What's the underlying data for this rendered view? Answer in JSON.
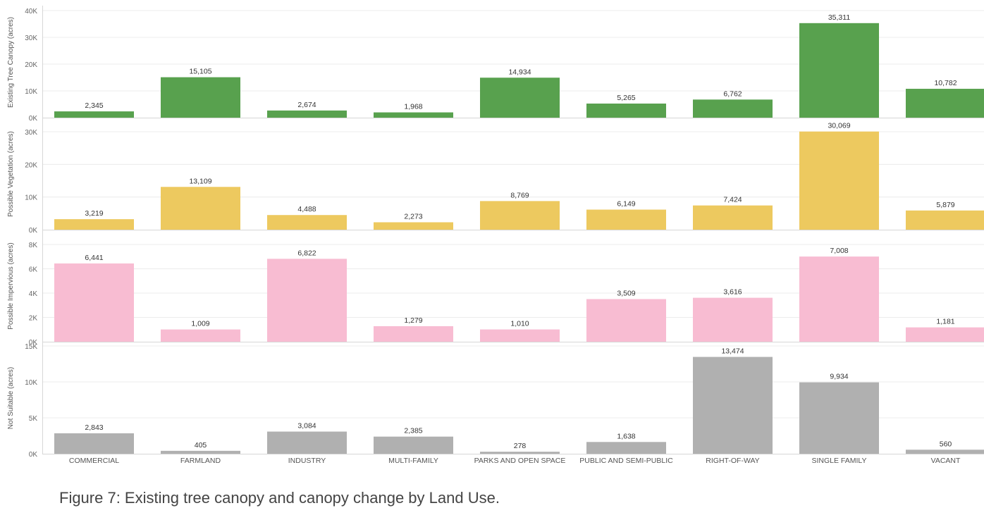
{
  "caption": "Figure 7: Existing tree canopy and canopy change by Land Use.",
  "chart_data": {
    "type": "bar",
    "categories": [
      "COMMERCIAL",
      "FARMLAND",
      "INDUSTRY",
      "MULTI-FAMILY",
      "PARKS AND OPEN SPACE",
      "PUBLIC AND SEMI-PUBLIC",
      "RIGHT-OF-WAY",
      "SINGLE FAMILY",
      "VACANT"
    ],
    "panels": [
      {
        "ylabel": "Existing Tree Canopy (acres)",
        "color": "#58a14e",
        "ylim": [
          0,
          40000
        ],
        "ticks": [
          0,
          10000,
          20000,
          30000,
          40000
        ],
        "tick_labels": [
          "0K",
          "10K",
          "20K",
          "30K",
          "40K"
        ],
        "values": [
          2345,
          15105,
          2674,
          1968,
          14934,
          5265,
          6762,
          35311,
          10782
        ],
        "value_labels": [
          "2,345",
          "15,105",
          "2,674",
          "1,968",
          "14,934",
          "5,265",
          "6,762",
          "35,311",
          "10,782"
        ]
      },
      {
        "ylabel": "Possible Vegetation (acres)",
        "color": "#edc95f",
        "ylim": [
          0,
          30000
        ],
        "ticks": [
          0,
          10000,
          20000,
          30000
        ],
        "tick_labels": [
          "0K",
          "10K",
          "20K",
          "30K"
        ],
        "values": [
          3219,
          13109,
          4488,
          2273,
          8769,
          6149,
          7424,
          30069,
          5879
        ],
        "value_labels": [
          "3,219",
          "13,109",
          "4,488",
          "2,273",
          "8,769",
          "6,149",
          "7,424",
          "30,069",
          "5,879"
        ]
      },
      {
        "ylabel": "Possible Impervious (acres)",
        "color": "#f8bcd2",
        "ylim": [
          0,
          8000
        ],
        "ticks": [
          0,
          2000,
          4000,
          6000,
          8000
        ],
        "tick_labels": [
          "0K",
          "2K",
          "4K",
          "6K",
          "8K"
        ],
        "values": [
          6441,
          1009,
          6822,
          1279,
          1010,
          3509,
          3616,
          7008,
          1181
        ],
        "value_labels": [
          "6,441",
          "1,009",
          "6,822",
          "1,279",
          "1,010",
          "3,509",
          "3,616",
          "7,008",
          "1,181"
        ]
      },
      {
        "ylabel": "Not Suitable (acres)",
        "color": "#b0b0b0",
        "ylim": [
          0,
          15000
        ],
        "ticks": [
          0,
          5000,
          10000,
          15000
        ],
        "tick_labels": [
          "0K",
          "5K",
          "10K",
          "15K"
        ],
        "values": [
          2843,
          405,
          3084,
          2385,
          278,
          1638,
          13474,
          9934,
          560
        ],
        "value_labels": [
          "2,843",
          "405",
          "3,084",
          "2,385",
          "278",
          "1,638",
          "13,474",
          "9,934",
          "560"
        ]
      }
    ],
    "grid": true,
    "legend": "none"
  }
}
